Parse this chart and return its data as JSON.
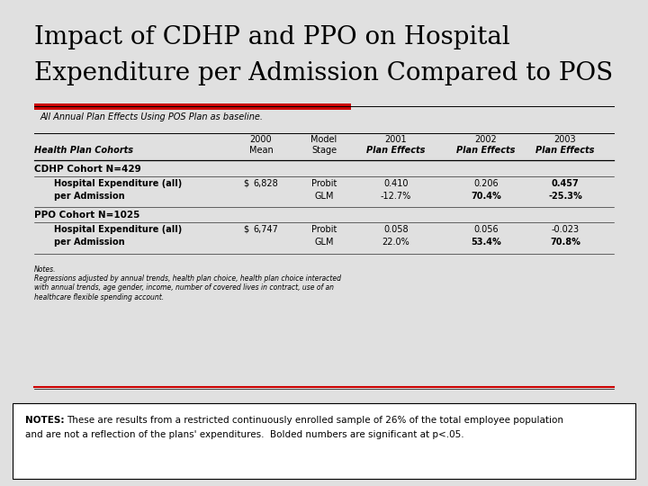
{
  "title_line1": "Impact of CDHP and PPO on Hospital",
  "title_line2": "Expenditure per Admission Compared to POS",
  "subtitle": "All Annual Plan Effects Using POS Plan as baseline.",
  "bg_color": "#e0e0e0",
  "red_bar_color": "#cc0000",
  "col_header_label": "Health Plan Cohorts",
  "cdhp_section_header": "CDHP Cohort N=429",
  "cdhp_row1_label": "Hospital Expenditure (all)",
  "cdhp_row2_label": "per Admission",
  "cdhp_dollar": "$",
  "cdhp_mean": "6,828",
  "cdhp_probit_label": "Probit",
  "cdhp_glm_label": "GLM",
  "cdhp_2001_probit": "0.410",
  "cdhp_2001_glm": "-12.7%",
  "cdhp_2002_probit": "0.206",
  "cdhp_2002_glm": "70.4%",
  "cdhp_2003_probit": "0.457",
  "cdhp_2003_glm": "-25.3%",
  "ppo_section_header": "PPO Cohort N=1025",
  "ppo_row1_label": "Hospital Expenditure (all)",
  "ppo_row2_label": "per Admission",
  "ppo_dollar": "$",
  "ppo_mean": "6,747",
  "ppo_probit_label": "Probit",
  "ppo_glm_label": "GLM",
  "ppo_2001_probit": "0.058",
  "ppo_2001_glm": "22.0%",
  "ppo_2002_probit": "0.056",
  "ppo_2002_glm": "53.4%",
  "ppo_2003_probit": "-0.023",
  "ppo_2003_glm": "70.8%",
  "notes_label": "Notes.",
  "notes_text": "Regressions adjusted by annual trends, health plan choice, health plan choice interacted\nwith annual trends, age gender, income, number of covered lives in contract, use of an\nhealthcare flexible spending account.",
  "footer_bold": "NOTES:",
  "footer_text": " These are results from a restricted continuously enrolled sample of 26% of the total employee population\nand are not a reflection of the plans' expenditures.  Bolded numbers are significant at p<.05."
}
